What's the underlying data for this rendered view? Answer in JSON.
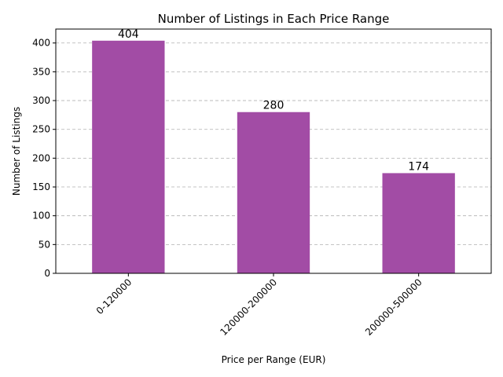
{
  "chart_data": {
    "type": "bar",
    "title": "Number of Listings in Each Price Range",
    "xlabel": "Price per Range (EUR)",
    "ylabel": "Number of Listings",
    "categories": [
      "0-120000",
      "120000-200000",
      "200000-500000"
    ],
    "values": [
      404,
      280,
      174
    ],
    "data_labels": [
      "404",
      "280",
      "174"
    ],
    "ylim": [
      0,
      424.2
    ],
    "yticks": [
      0,
      50,
      100,
      150,
      200,
      250,
      300,
      350,
      400
    ],
    "x_tick_rotation_deg": 45,
    "grid": {
      "y": true,
      "x": false,
      "style": "dashed"
    },
    "bar_color": "#a24ca5",
    "legend": "none"
  }
}
